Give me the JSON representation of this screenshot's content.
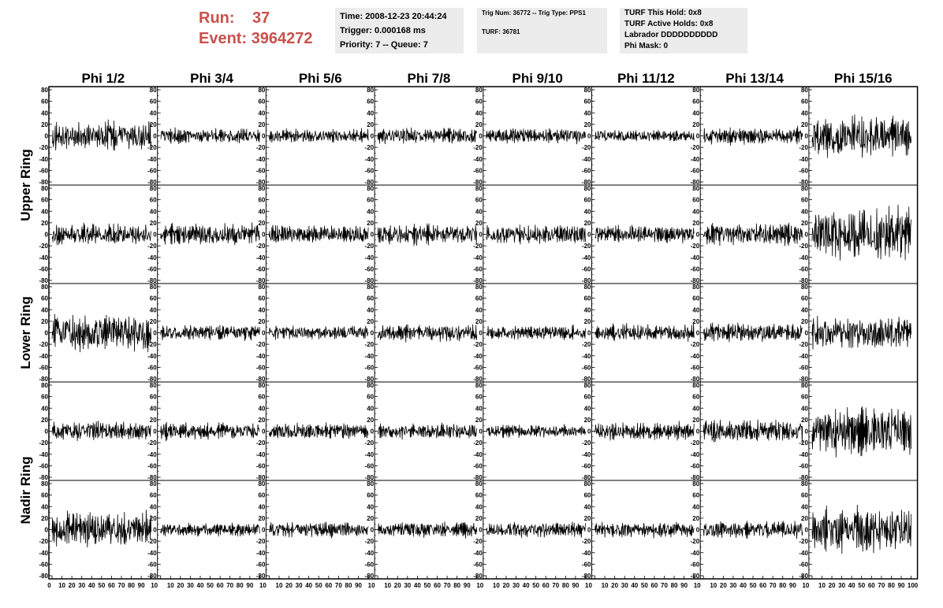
{
  "header": {
    "run_label": "Run:",
    "run_value": "37",
    "event_label": "Event:",
    "event_value": "3964272",
    "time_line": "Time: 2008-12-23 20:44:24",
    "trigger_line": "Trigger: 0.000168 ms",
    "priority_line": "Priority: 7 -- Queue: 7",
    "trig_line": "Trig Num: 36772 -- Trig Type: PPS1",
    "turf_line": "TURF: 36781",
    "turf_hold_line": "TURF This Hold: 0x8",
    "turf_active_line": "TURF Active Holds: 0x8",
    "labrador_line": "Labrador DDDDDDDDDD",
    "phi_mask_line": "Phi Mask: 0"
  },
  "colors": {
    "accent": "#c8504b",
    "box_bg": "#ececec",
    "trace": "#000000"
  },
  "chart_data": {
    "type": "line",
    "columns": [
      "Phi 1/2",
      "Phi 3/4",
      "Phi 5/6",
      "Phi 7/8",
      "Phi 9/10",
      "Phi 11/12",
      "Phi 13/14",
      "Phi 15/16"
    ],
    "ring_labels": [
      "Upper Ring",
      "Lower Ring",
      "Nadir Ring"
    ],
    "rows": 5,
    "ylim": [
      -80,
      80
    ],
    "xlim": [
      0,
      100
    ],
    "y_ticks": [
      "80",
      "60",
      "40",
      "20",
      "0",
      "-20",
      "-40",
      "-60",
      "-80"
    ],
    "x_ticks": [
      "10",
      "20",
      "30",
      "40",
      "50",
      "60",
      "70",
      "80",
      "90"
    ],
    "x_first_tick": "0",
    "x_last_tick": "100",
    "x_tick_tail": "10",
    "waveforms": [
      {
        "row": 0,
        "col": 0,
        "amplitude": 26
      },
      {
        "row": 0,
        "col": 1,
        "amplitude": 14
      },
      {
        "row": 0,
        "col": 2,
        "amplitude": 13
      },
      {
        "row": 0,
        "col": 3,
        "amplitude": 15
      },
      {
        "row": 0,
        "col": 4,
        "amplitude": 14
      },
      {
        "row": 0,
        "col": 5,
        "amplitude": 11
      },
      {
        "row": 0,
        "col": 6,
        "amplitude": 15
      },
      {
        "row": 0,
        "col": 7,
        "amplitude": 38
      },
      {
        "row": 1,
        "col": 0,
        "amplitude": 20
      },
      {
        "row": 1,
        "col": 1,
        "amplitude": 20
      },
      {
        "row": 1,
        "col": 2,
        "amplitude": 17
      },
      {
        "row": 1,
        "col": 3,
        "amplitude": 19
      },
      {
        "row": 1,
        "col": 4,
        "amplitude": 17
      },
      {
        "row": 1,
        "col": 5,
        "amplitude": 16
      },
      {
        "row": 1,
        "col": 6,
        "amplitude": 20
      },
      {
        "row": 1,
        "col": 7,
        "amplitude": 50
      },
      {
        "row": 2,
        "col": 0,
        "amplitude": 34
      },
      {
        "row": 2,
        "col": 1,
        "amplitude": 14
      },
      {
        "row": 2,
        "col": 2,
        "amplitude": 14
      },
      {
        "row": 2,
        "col": 3,
        "amplitude": 16
      },
      {
        "row": 2,
        "col": 4,
        "amplitude": 13
      },
      {
        "row": 2,
        "col": 5,
        "amplitude": 16
      },
      {
        "row": 2,
        "col": 6,
        "amplitude": 17
      },
      {
        "row": 2,
        "col": 7,
        "amplitude": 30
      },
      {
        "row": 3,
        "col": 0,
        "amplitude": 17
      },
      {
        "row": 3,
        "col": 1,
        "amplitude": 15
      },
      {
        "row": 3,
        "col": 2,
        "amplitude": 15
      },
      {
        "row": 3,
        "col": 3,
        "amplitude": 14
      },
      {
        "row": 3,
        "col": 4,
        "amplitude": 12
      },
      {
        "row": 3,
        "col": 5,
        "amplitude": 16
      },
      {
        "row": 3,
        "col": 6,
        "amplitude": 22
      },
      {
        "row": 3,
        "col": 7,
        "amplitude": 46
      },
      {
        "row": 4,
        "col": 0,
        "amplitude": 32
      },
      {
        "row": 4,
        "col": 1,
        "amplitude": 12
      },
      {
        "row": 4,
        "col": 2,
        "amplitude": 15
      },
      {
        "row": 4,
        "col": 3,
        "amplitude": 14
      },
      {
        "row": 4,
        "col": 4,
        "amplitude": 14
      },
      {
        "row": 4,
        "col": 5,
        "amplitude": 14
      },
      {
        "row": 4,
        "col": 6,
        "amplitude": 16
      },
      {
        "row": 4,
        "col": 7,
        "amplitude": 40
      }
    ]
  }
}
